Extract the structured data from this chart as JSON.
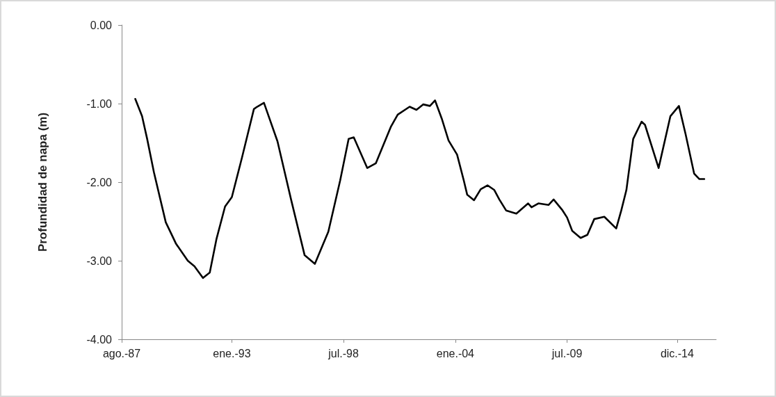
{
  "chart_data": {
    "type": "line",
    "ylabel": "Profundidad de napa (m)",
    "x": [
      "1988-04",
      "1988-08",
      "1988-11",
      "1989-03",
      "1989-10",
      "1990-04",
      "1990-11",
      "1991-03",
      "1991-08",
      "1991-12",
      "1992-04",
      "1992-09",
      "1993-01",
      "1993-07",
      "1994-02",
      "1994-04",
      "1994-08",
      "1995-04",
      "1995-12",
      "1996-08",
      "1997-02",
      "1997-10",
      "1998-05",
      "1998-10",
      "1999-01",
      "1999-09",
      "2000-02",
      "2000-11",
      "2001-03",
      "2001-10",
      "2002-02",
      "2002-06",
      "2002-10",
      "2003-01",
      "2003-05",
      "2003-09",
      "2004-02",
      "2004-06",
      "2004-08",
      "2004-12",
      "2005-04",
      "2005-08",
      "2005-12",
      "2006-03",
      "2006-07",
      "2007-01",
      "2007-08",
      "2007-10",
      "2008-02",
      "2008-08",
      "2008-11",
      "2009-04",
      "2009-07",
      "2009-10",
      "2010-03",
      "2010-07",
      "2010-11",
      "2011-05",
      "2011-12",
      "2012-03",
      "2012-06",
      "2012-10",
      "2013-03",
      "2013-05",
      "2014-01",
      "2014-08",
      "2015-01",
      "2015-05",
      "2015-10",
      "2016-01",
      "2016-04"
    ],
    "series": [
      {
        "color": "#000000",
        "values": [
          -0.94,
          -1.16,
          -1.45,
          -1.87,
          -2.51,
          -2.78,
          -3.0,
          -3.07,
          -3.22,
          -3.15,
          -2.72,
          -2.31,
          -2.19,
          -1.69,
          -1.07,
          -1.04,
          -0.99,
          -1.48,
          -2.22,
          -2.93,
          -3.04,
          -2.63,
          -1.98,
          -1.45,
          -1.43,
          -1.82,
          -1.76,
          -1.29,
          -1.14,
          -1.04,
          -1.08,
          -1.01,
          -1.03,
          -0.96,
          -1.19,
          -1.47,
          -1.65,
          -1.98,
          -2.16,
          -2.23,
          -2.09,
          -2.04,
          -2.1,
          -2.22,
          -2.36,
          -2.4,
          -2.27,
          -2.32,
          -2.27,
          -2.29,
          -2.22,
          -2.35,
          -2.45,
          -2.62,
          -2.71,
          -2.67,
          -2.47,
          -2.44,
          -2.59,
          -2.36,
          -2.1,
          -1.45,
          -1.23,
          -1.27,
          -1.82,
          -1.16,
          -1.03,
          -1.39,
          -1.89,
          -1.96,
          -1.96
        ]
      }
    ],
    "xlim": [
      "1987-08",
      "2016-11"
    ],
    "xticks": [
      {
        "value": "1987-08",
        "label": "ago.-87"
      },
      {
        "value": "1993-01",
        "label": "ene.-93"
      },
      {
        "value": "1998-07",
        "label": "jul.-98"
      },
      {
        "value": "2004-01",
        "label": "ene.-04"
      },
      {
        "value": "2009-07",
        "label": "jul.-09"
      },
      {
        "value": "2014-12",
        "label": "dic.-14"
      }
    ],
    "ylim": [
      -4,
      0
    ],
    "yticks": [
      {
        "value": 0,
        "label": "0.00"
      },
      {
        "value": -1,
        "label": "-1.00"
      },
      {
        "value": -2,
        "label": "-2.00"
      },
      {
        "value": -3,
        "label": "-3.00"
      },
      {
        "value": -4,
        "label": "-4.00"
      }
    ],
    "grid": false,
    "marker": "none",
    "line_style": "solid"
  }
}
